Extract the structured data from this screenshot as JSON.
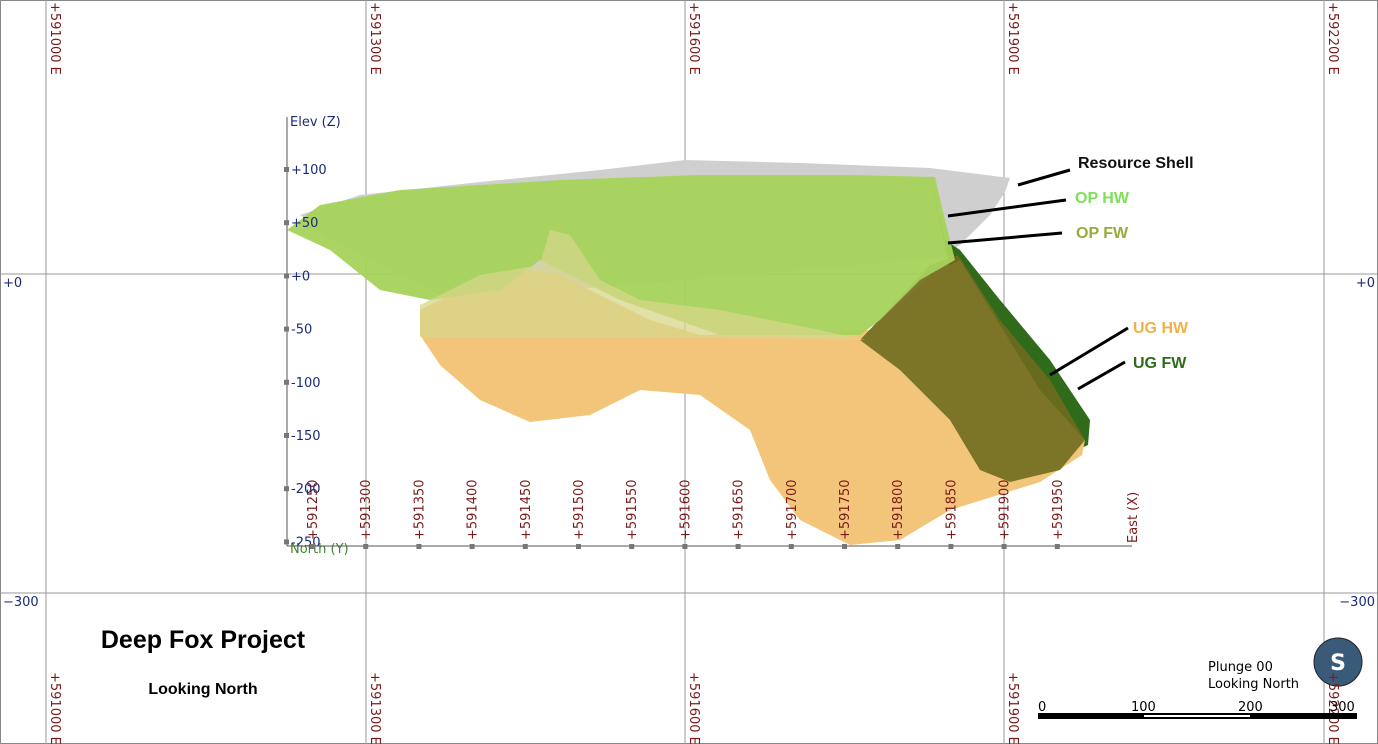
{
  "grid": {
    "easting_labels": [
      "+591000 E",
      "+591300 E",
      "+591600 E",
      "+591900 E",
      "+592200 E"
    ],
    "elevation_labels": [
      "+0",
      "−300"
    ]
  },
  "elevation_axis": {
    "title": "Elev (Z)",
    "ticks": [
      "+100",
      "+50",
      "+0",
      "-50",
      "-100",
      "-150",
      "-200",
      "-250"
    ]
  },
  "east_axis": {
    "title": "East (X)",
    "north_title": "North (Y)",
    "ticks": [
      "+591250",
      "+591300",
      "+591350",
      "+591400",
      "+591450",
      "+591500",
      "+591550",
      "+591600",
      "+591650",
      "+591700",
      "+591750",
      "+591800",
      "+591850",
      "+591900",
      "+591950"
    ]
  },
  "legend": [
    "Resource Shell",
    "OP HW",
    "OP FW",
    "UG HW",
    "UG FW"
  ],
  "title": "Deep Fox Project",
  "subtitle": "Looking North",
  "view_info": {
    "plunge": "Plunge 00",
    "direction": "Looking North"
  },
  "scale_bar": [
    "0",
    "100",
    "200",
    "300"
  ],
  "compass": "S"
}
